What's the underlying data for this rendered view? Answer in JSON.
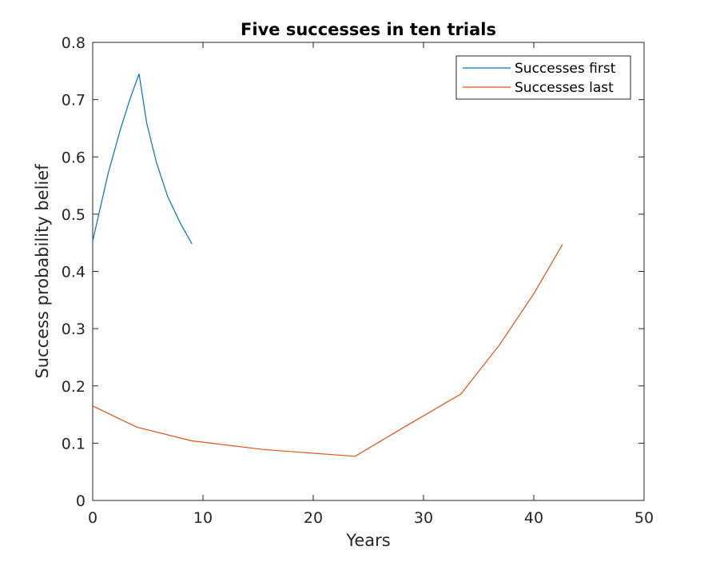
{
  "chart_data": {
    "type": "line",
    "title": "Five successes in ten trials",
    "xlabel": "Years",
    "ylabel": "Success probability belief",
    "xlim": [
      0,
      50
    ],
    "ylim": [
      0,
      0.8
    ],
    "x_ticks": [
      0,
      10,
      20,
      30,
      40,
      50
    ],
    "y_ticks": [
      0,
      0.1,
      0.2,
      0.3,
      0.4,
      0.5,
      0.6,
      0.7,
      0.8
    ],
    "x_tick_labels": [
      "0",
      "10",
      "20",
      "30",
      "40",
      "50"
    ],
    "y_tick_labels": [
      "0",
      "0.1",
      "0.2",
      "0.3",
      "0.4",
      "0.5",
      "0.6",
      "0.7",
      "0.8"
    ],
    "grid": false,
    "legend_position": "top-right",
    "series": [
      {
        "name": "Successes first",
        "color": "#0072BD",
        "x": [
          0,
          1.4,
          2.5,
          3.4,
          4.2,
          4.9,
          5.8,
          6.8,
          7.9,
          9.0
        ],
        "y": [
          0.453,
          0.571,
          0.647,
          0.702,
          0.745,
          0.659,
          0.589,
          0.531,
          0.486,
          0.448
        ]
      },
      {
        "name": "Successes last",
        "color": "#D95319",
        "x": [
          0,
          4.0,
          9.0,
          15.5,
          23.8,
          28.5,
          33.4,
          36.9,
          40.0,
          42.6
        ],
        "y": [
          0.165,
          0.128,
          0.104,
          0.089,
          0.077,
          0.131,
          0.186,
          0.272,
          0.361,
          0.447
        ]
      }
    ]
  }
}
